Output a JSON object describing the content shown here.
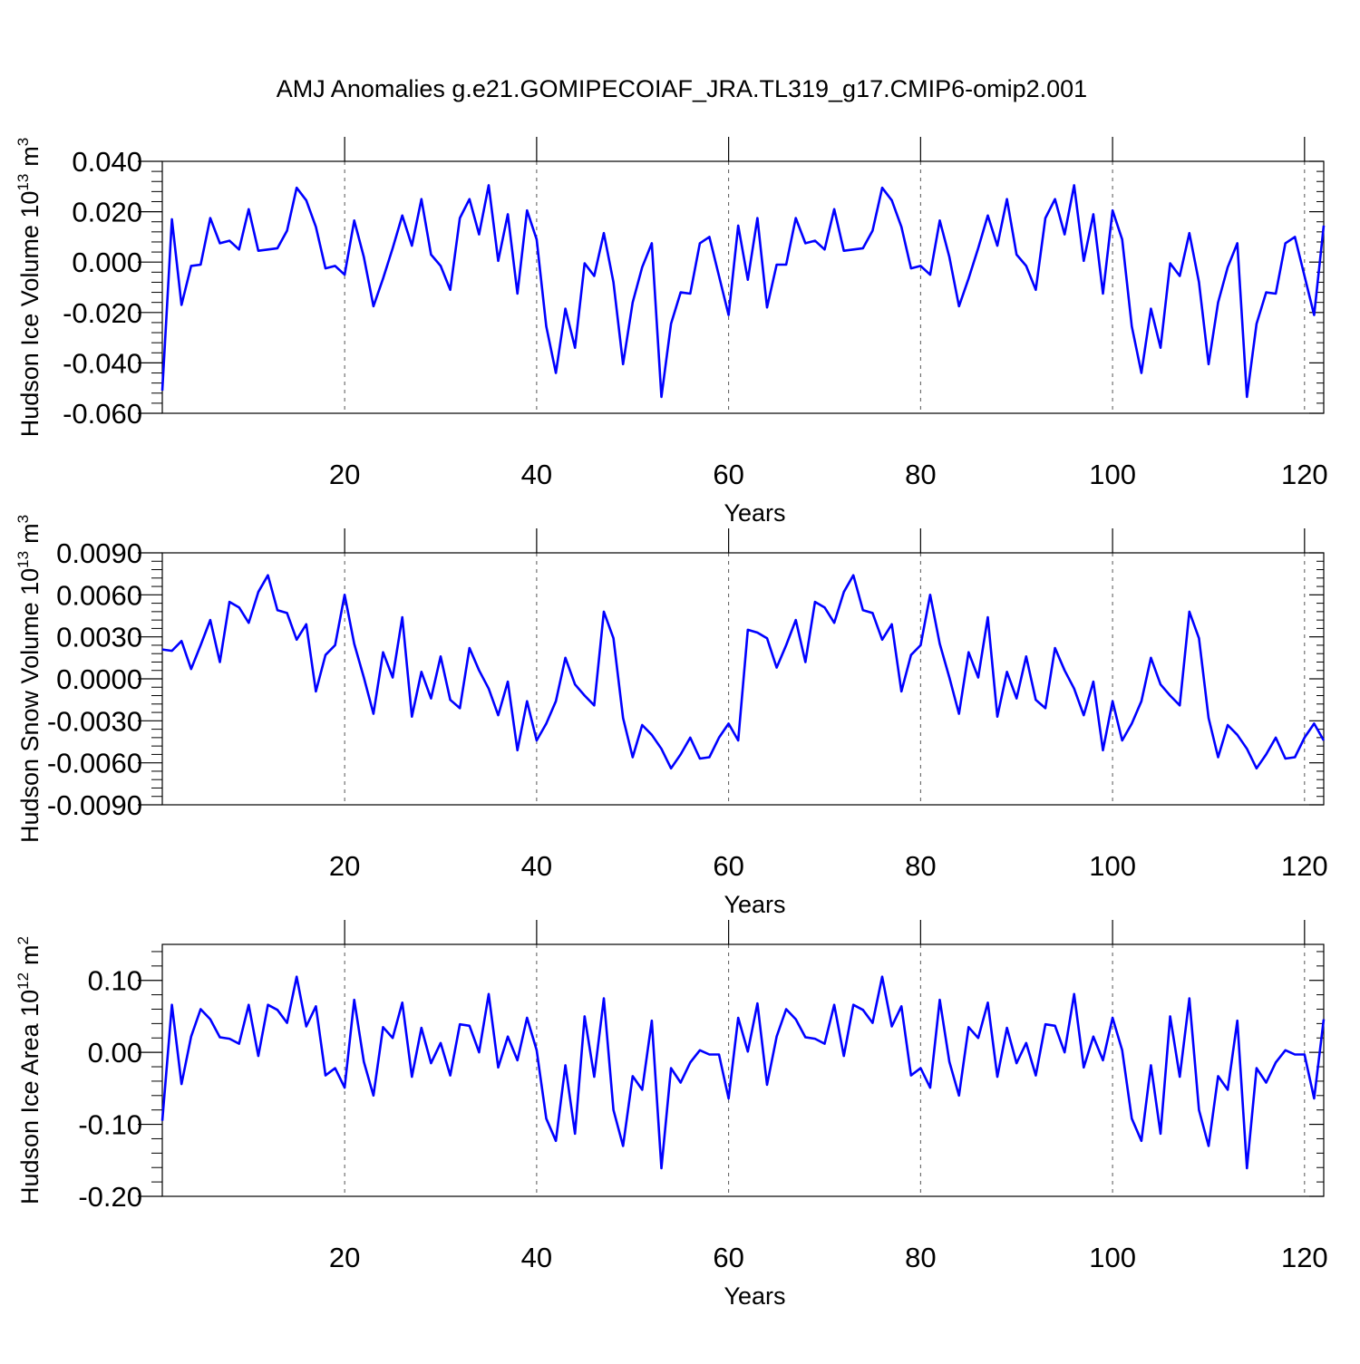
{
  "title": "AMJ Anomalies g.e21.GOMIPECOIAF_JRA.TL319_g17.CMIP6-omip2.001",
  "colors": {
    "series": "#0000ff",
    "axis": "#000000",
    "gridline": "#555555"
  },
  "chart_data": [
    {
      "type": "line",
      "ylabel_main": "Hudson Ice Volume 10",
      "ylabel_exp": "13",
      "ylabel_unit": "m",
      "ylabel_unit_exp": "3",
      "xlabel": "Years",
      "xlim": [
        1,
        122
      ],
      "ylim": [
        -0.06,
        0.04
      ],
      "yticks": [
        -0.06,
        -0.04,
        -0.02,
        0.0,
        0.02,
        0.04
      ],
      "ytick_labels": [
        "-0.060",
        "-0.040",
        "-0.020",
        "0.000",
        "0.020",
        "0.040"
      ],
      "xticks": [
        20,
        40,
        60,
        80,
        100,
        120
      ],
      "xtick_labels": [
        "20",
        "40",
        "60",
        "80",
        "100",
        "120"
      ],
      "x_start": 1,
      "values": [
        -0.051,
        0.017,
        -0.017,
        -0.0015,
        -0.001,
        0.0175,
        0.0075,
        0.0085,
        0.005,
        0.021,
        0.0045,
        0.005,
        0.0055,
        0.0125,
        0.0295,
        0.0245,
        0.014,
        -0.0025,
        -0.0015,
        -0.005,
        0.0165,
        0.002,
        -0.0175,
        -0.0065,
        0.0055,
        0.0185,
        0.0065,
        0.025,
        0.003,
        -0.0015,
        -0.011,
        0.0175,
        0.025,
        0.011,
        0.0305,
        0.0005,
        0.019,
        -0.0125,
        0.0205,
        0.009,
        -0.0255,
        -0.044,
        -0.0185,
        -0.034,
        -0.0005,
        -0.0055,
        0.0115,
        -0.008,
        -0.0405,
        -0.016,
        -0.002,
        0.0075,
        -0.0535,
        -0.0245,
        -0.012,
        -0.0125,
        0.0075,
        0.01,
        -0.0055,
        -0.021,
        0.0145,
        -0.007,
        0.0175,
        -0.018,
        -0.001,
        -0.001,
        0.0175,
        0.0075,
        0.0085,
        0.005,
        0.021,
        0.0045,
        0.005,
        0.0055,
        0.0125,
        0.0295,
        0.0245,
        0.014,
        -0.0025,
        -0.0015,
        -0.005,
        0.0165,
        0.002,
        -0.0175,
        -0.0065,
        0.0055,
        0.0185,
        0.0065,
        0.025,
        0.003,
        -0.0015,
        -0.011,
        0.0175,
        0.025,
        0.011,
        0.0305,
        0.0005,
        0.019,
        -0.0125,
        0.0205,
        0.009,
        -0.0255,
        -0.044,
        -0.0185,
        -0.034,
        -0.0005,
        -0.0055,
        0.0115,
        -0.008,
        -0.0405,
        -0.016,
        -0.002,
        0.0075,
        -0.0535,
        -0.0245,
        -0.012,
        -0.0125,
        0.0075,
        0.01,
        -0.0055,
        -0.021,
        0.0145
      ]
    },
    {
      "type": "line",
      "ylabel_main": "Hudson Snow Volume 10",
      "ylabel_exp": "13",
      "ylabel_unit": "m",
      "ylabel_unit_exp": "3",
      "xlabel": "Years",
      "xlim": [
        1,
        122
      ],
      "ylim": [
        -0.009,
        0.009
      ],
      "yticks": [
        -0.009,
        -0.006,
        -0.003,
        0.0,
        0.003,
        0.006,
        0.009
      ],
      "ytick_labels": [
        "-0.0090",
        "-0.0060",
        "-0.0030",
        "0.0000",
        "0.0030",
        "0.0060",
        "0.0090"
      ],
      "xticks": [
        20,
        40,
        60,
        80,
        100,
        120
      ],
      "xtick_labels": [
        "20",
        "40",
        "60",
        "80",
        "100",
        "120"
      ],
      "x_start": 1,
      "values": [
        0.0021,
        0.002,
        0.0027,
        0.0007,
        0.0024,
        0.0042,
        0.0012,
        0.0055,
        0.0051,
        0.004,
        0.0062,
        0.0074,
        0.0049,
        0.0047,
        0.0028,
        0.0039,
        -0.0009,
        0.0017,
        0.0024,
        0.006,
        0.0025,
        0.0001,
        -0.0025,
        0.0019,
        0.0001,
        0.0044,
        -0.0027,
        0.0005,
        -0.0014,
        0.0016,
        -0.0015,
        -0.0021,
        0.0022,
        0.0006,
        -0.0007,
        -0.0026,
        -0.0002,
        -0.0051,
        -0.0016,
        -0.0044,
        -0.0032,
        -0.0016,
        0.0015,
        -0.0004,
        -0.0012,
        -0.0019,
        0.0048,
        0.0029,
        -0.0028,
        -0.0056,
        -0.0033,
        -0.004,
        -0.005,
        -0.0064,
        -0.0054,
        -0.0042,
        -0.0057,
        -0.0056,
        -0.0042,
        -0.0032,
        -0.0044,
        0.0035,
        0.0033,
        0.0029,
        0.0008,
        0.0024,
        0.0042,
        0.0012,
        0.0055,
        0.0051,
        0.004,
        0.0062,
        0.0074,
        0.0049,
        0.0047,
        0.0028,
        0.0039,
        -0.0009,
        0.0017,
        0.0024,
        0.006,
        0.0025,
        0.0001,
        -0.0025,
        0.0019,
        0.0001,
        0.0044,
        -0.0027,
        0.0005,
        -0.0014,
        0.0016,
        -0.0015,
        -0.0021,
        0.0022,
        0.0006,
        -0.0007,
        -0.0026,
        -0.0002,
        -0.0051,
        -0.0016,
        -0.0044,
        -0.0032,
        -0.0016,
        0.0015,
        -0.0004,
        -0.0012,
        -0.0019,
        0.0048,
        0.0029,
        -0.0028,
        -0.0056,
        -0.0033,
        -0.004,
        -0.005,
        -0.0064,
        -0.0054,
        -0.0042,
        -0.0057,
        -0.0056,
        -0.0042,
        -0.0032,
        -0.0044
      ]
    },
    {
      "type": "line",
      "ylabel_main": "Hudson Ice Area 10",
      "ylabel_exp": "12",
      "ylabel_unit": "m",
      "ylabel_unit_exp": "2",
      "xlabel": "Years",
      "xlim": [
        1,
        122
      ],
      "ylim": [
        -0.2,
        0.15
      ],
      "yticks": [
        -0.2,
        -0.1,
        0.0,
        0.1
      ],
      "ytick_labels": [
        "-0.20",
        "-0.10",
        "0.00",
        "0.10"
      ],
      "xticks": [
        20,
        40,
        60,
        80,
        100,
        120
      ],
      "xtick_labels": [
        "20",
        "40",
        "60",
        "80",
        "100",
        "120"
      ],
      "x_start": 1,
      "values": [
        -0.095,
        0.066,
        -0.044,
        0.022,
        0.06,
        0.046,
        0.021,
        0.019,
        0.012,
        0.066,
        -0.005,
        0.066,
        0.059,
        0.041,
        0.105,
        0.036,
        0.064,
        -0.032,
        -0.022,
        -0.049,
        0.073,
        -0.013,
        -0.06,
        0.035,
        0.02,
        0.069,
        -0.034,
        0.034,
        -0.015,
        0.013,
        -0.032,
        0.039,
        0.037,
        0.0,
        0.081,
        -0.021,
        0.022,
        -0.011,
        0.048,
        0.003,
        -0.092,
        -0.123,
        -0.018,
        -0.113,
        0.05,
        -0.034,
        0.075,
        -0.08,
        -0.13,
        -0.033,
        -0.052,
        0.044,
        -0.161,
        -0.022,
        -0.042,
        -0.014,
        0.003,
        -0.003,
        -0.003,
        -0.064,
        0.048,
        0.001,
        0.068,
        -0.045,
        0.022,
        0.06,
        0.046,
        0.021,
        0.019,
        0.012,
        0.066,
        -0.005,
        0.066,
        0.059,
        0.041,
        0.105,
        0.036,
        0.064,
        -0.032,
        -0.022,
        -0.049,
        0.073,
        -0.013,
        -0.06,
        0.035,
        0.02,
        0.069,
        -0.034,
        0.034,
        -0.015,
        0.013,
        -0.032,
        0.039,
        0.037,
        0.0,
        0.081,
        -0.021,
        0.022,
        -0.011,
        0.048,
        0.003,
        -0.092,
        -0.123,
        -0.018,
        -0.113,
        0.05,
        -0.034,
        0.075,
        -0.08,
        -0.13,
        -0.033,
        -0.052,
        0.044,
        -0.161,
        -0.022,
        -0.042,
        -0.014,
        0.003,
        -0.003,
        -0.003,
        -0.064,
        0.046
      ]
    }
  ]
}
